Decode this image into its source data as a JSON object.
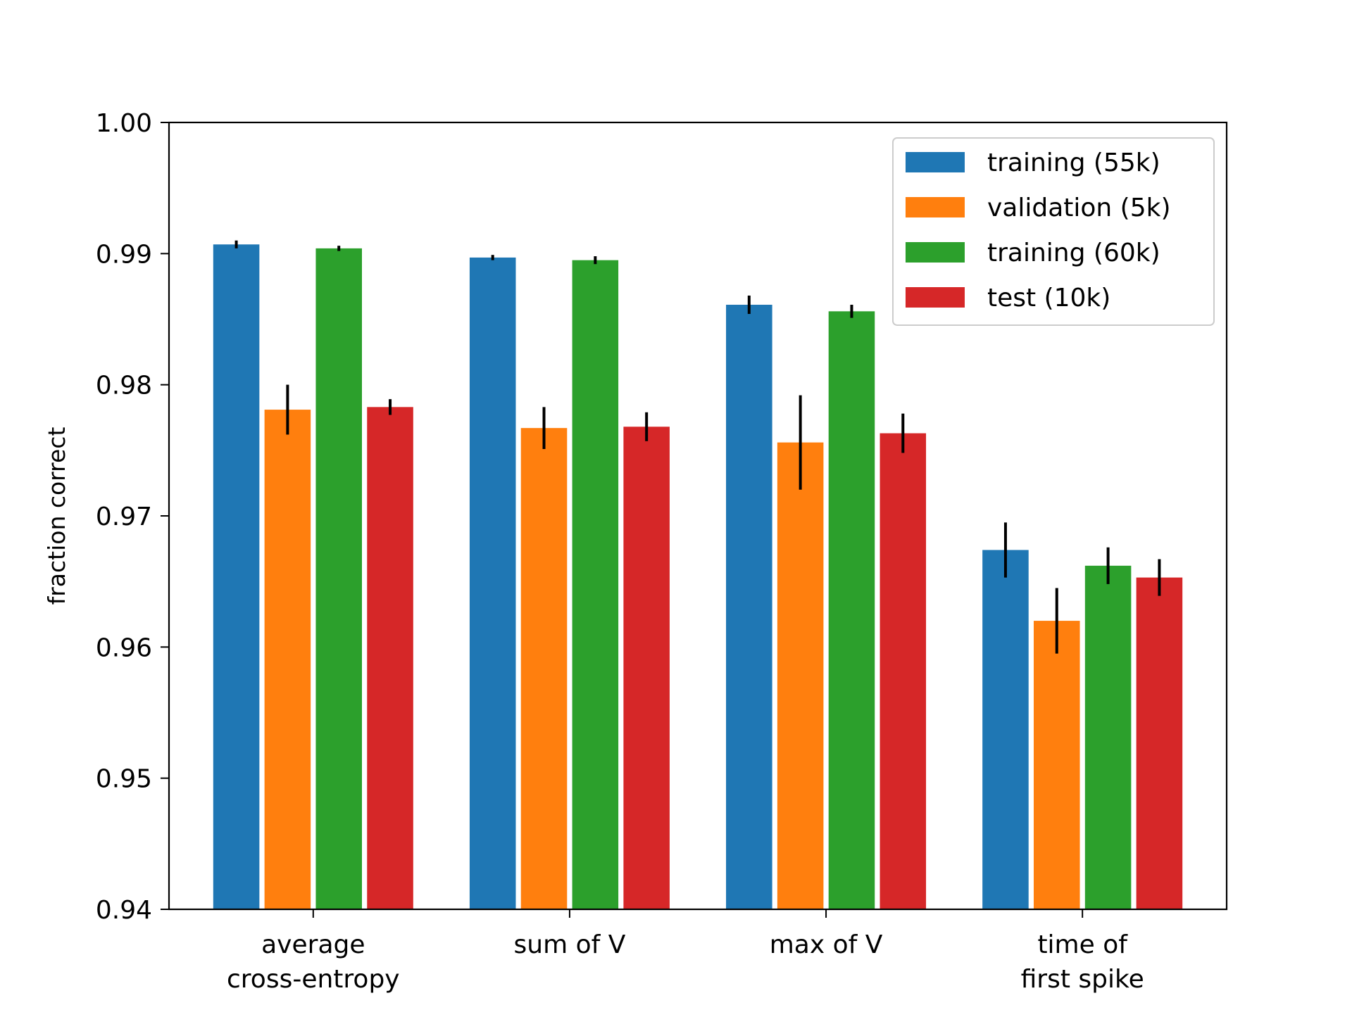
{
  "chart_data": {
    "type": "bar",
    "title": "",
    "xlabel": "",
    "ylabel": "fraction correct",
    "ylim": [
      0.94,
      1.0
    ],
    "yticks": [
      "0.94",
      "0.95",
      "0.96",
      "0.97",
      "0.98",
      "0.99",
      "1.00"
    ],
    "yticks_values": [
      0.94,
      0.95,
      0.96,
      0.97,
      0.98,
      0.99,
      1.0
    ],
    "grid": false,
    "legend_position": "top-right",
    "categories": [
      [
        "average",
        "cross-entropy"
      ],
      [
        "sum of V"
      ],
      [
        "max of V"
      ],
      [
        "time of",
        "first spike"
      ]
    ],
    "series": [
      {
        "name": "training (55k)",
        "color": "#1f77b4",
        "values": [
          0.9907,
          0.9897,
          0.9861,
          0.9674
        ],
        "errors": [
          0.0003,
          0.0002,
          0.0007,
          0.0021
        ]
      },
      {
        "name": "validation (5k)",
        "color": "#ff7f0e",
        "values": [
          0.9781,
          0.9767,
          0.9756,
          0.962
        ],
        "errors": [
          0.0019,
          0.0016,
          0.0036,
          0.0025
        ]
      },
      {
        "name": "training (60k)",
        "color": "#2ca02c",
        "values": [
          0.9904,
          0.9895,
          0.9856,
          0.9662
        ],
        "errors": [
          0.0002,
          0.0003,
          0.0005,
          0.0014
        ]
      },
      {
        "name": "test (10k)",
        "color": "#d62728",
        "values": [
          0.9783,
          0.9768,
          0.9763,
          0.9653
        ],
        "errors": [
          0.0006,
          0.0011,
          0.0015,
          0.0014
        ]
      }
    ]
  }
}
